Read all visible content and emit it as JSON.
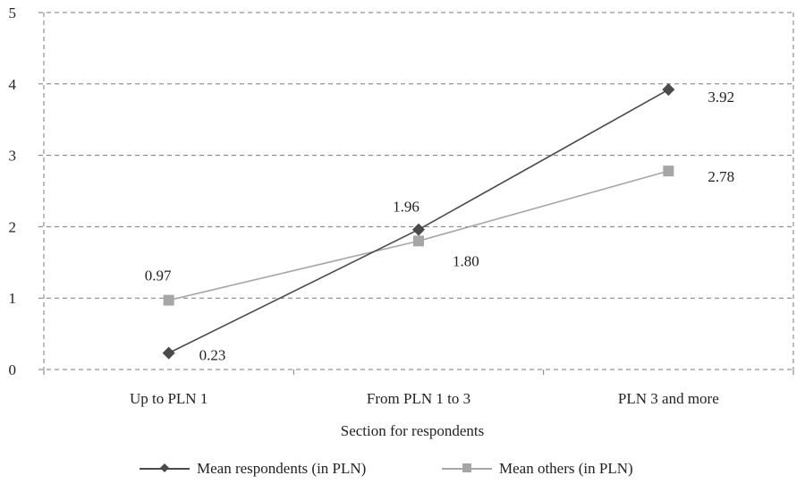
{
  "chart_data": {
    "type": "line",
    "categories": [
      "Up to PLN 1",
      "From PLN 1 to 3",
      "PLN 3 and more"
    ],
    "series": [
      {
        "name": "Mean respondents (in PLN)",
        "values": [
          0.23,
          1.96,
          3.92
        ],
        "labels": [
          "0.23",
          "1.96",
          "3.92"
        ],
        "color": "#4a4a4a",
        "marker": "diamond"
      },
      {
        "name": "Mean others (in PLN)",
        "values": [
          0.97,
          1.8,
          2.78
        ],
        "labels": [
          "0.97",
          "1.80",
          "2.78"
        ],
        "color": "#a6a6a6",
        "marker": "square"
      }
    ],
    "xlabel": "Section for respondents",
    "ylabel": "",
    "ylim": [
      0,
      5
    ],
    "yticks": [
      "0",
      "1",
      "2",
      "3",
      "4",
      "5"
    ],
    "grid": true,
    "legend": "bottom"
  }
}
